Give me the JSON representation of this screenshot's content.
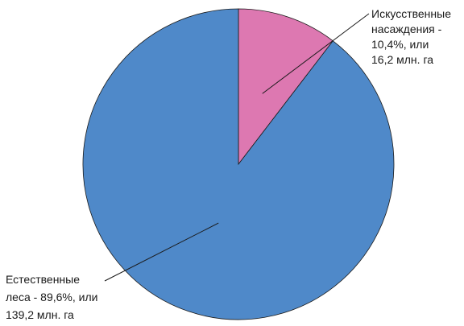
{
  "chart_data": {
    "type": "pie",
    "title": "",
    "slices": [
      {
        "key": "artificial",
        "percent": 10.4,
        "area_mln_ha": 16.2,
        "color": "#dd78b1",
        "label_lines": [
          "Искусственные",
          "насаждения -",
          "10,4%, или",
          "16,2 млн. га"
        ]
      },
      {
        "key": "natural",
        "percent": 89.6,
        "area_mln_ha": 139.2,
        "color": "#4f89c9",
        "label_lines": [
          "Естественные",
          "леса - 89,6%, или",
          "139,2 млн. га"
        ]
      }
    ],
    "start_angle": "12 o'clock",
    "direction": "clockwise",
    "legend": "none"
  }
}
